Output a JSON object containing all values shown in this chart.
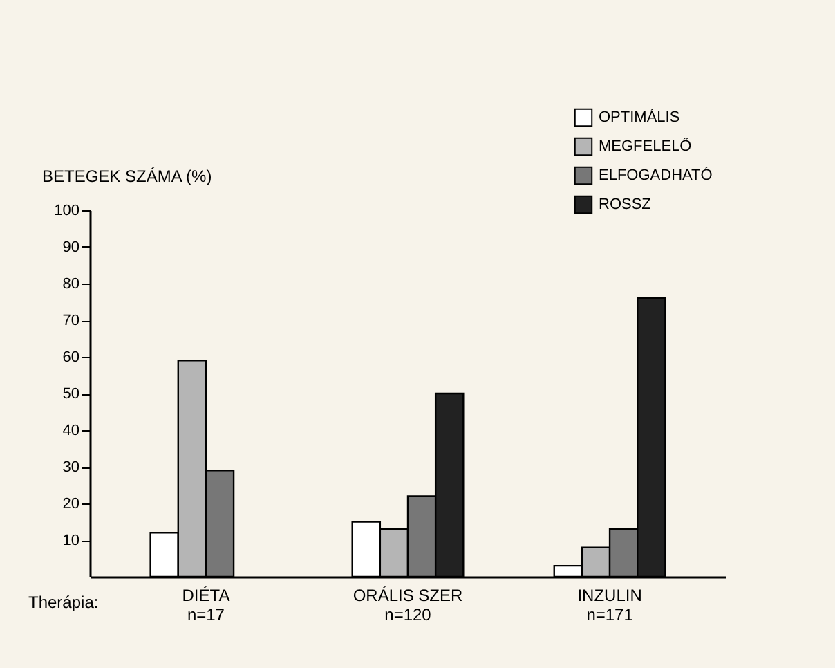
{
  "chart_data": {
    "type": "bar",
    "ylabel": "BETEGEK SZÁMA (%)",
    "xlabel": "Therápia:",
    "categories": [
      "DIÉTA\nn=17",
      "ORÁLIS SZER\nn=120",
      "INZULIN\nn=171"
    ],
    "series": [
      {
        "name": "OPTIMÁLIS",
        "color": "#ffffff",
        "values": [
          12,
          15,
          3
        ]
      },
      {
        "name": "MEGFELELŐ",
        "color": "#b5b5b5",
        "values": [
          59,
          13,
          8
        ]
      },
      {
        "name": "ELFOGADHATÓ",
        "color": "#777777",
        "values": [
          29,
          22,
          13
        ]
      },
      {
        "name": "ROSSZ",
        "color": "#222222",
        "values": [
          null,
          50,
          76
        ]
      }
    ],
    "ylim": [
      0,
      100
    ],
    "yticks": [
      10,
      20,
      30,
      40,
      50,
      60,
      70,
      80,
      90,
      100
    ],
    "grid": false,
    "legend": "top right"
  }
}
